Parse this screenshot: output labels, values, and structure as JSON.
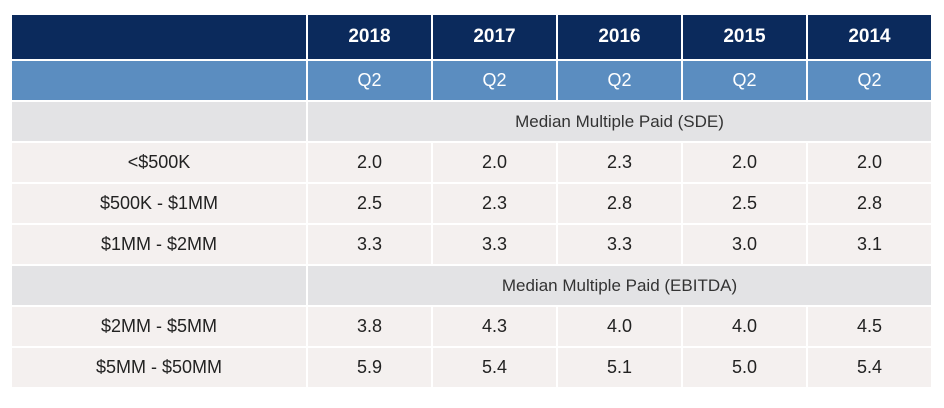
{
  "chart_data": {
    "type": "table",
    "columns": [
      "2018",
      "2017",
      "2016",
      "2015",
      "2014"
    ],
    "quarters": [
      "Q2",
      "Q2",
      "Q2",
      "Q2",
      "Q2"
    ],
    "sections": [
      {
        "title": "Median Multiple Paid (SDE)",
        "rows": [
          {
            "label": "<$500K",
            "values": [
              "2.0",
              "2.0",
              "2.3",
              "2.0",
              "2.0"
            ]
          },
          {
            "label": "$500K - $1MM",
            "values": [
              "2.5",
              "2.3",
              "2.8",
              "2.5",
              "2.8"
            ]
          },
          {
            "label": "$1MM - $2MM",
            "values": [
              "3.3",
              "3.3",
              "3.3",
              "3.0",
              "3.1"
            ]
          }
        ]
      },
      {
        "title": "Median Multiple Paid (EBITDA)",
        "rows": [
          {
            "label": "$2MM - $5MM",
            "values": [
              "3.8",
              "4.3",
              "4.0",
              "4.0",
              "4.5"
            ]
          },
          {
            "label": "$5MM - $50MM",
            "values": [
              "5.9",
              "5.4",
              "5.1",
              "5.0",
              "5.4"
            ]
          }
        ]
      }
    ]
  },
  "colors": {
    "header_bg": "#0b2a5c",
    "subheader_bg": "#5b8dc0",
    "section_bg": "#e3e3e5",
    "row_bg": "#f4f0ef"
  }
}
